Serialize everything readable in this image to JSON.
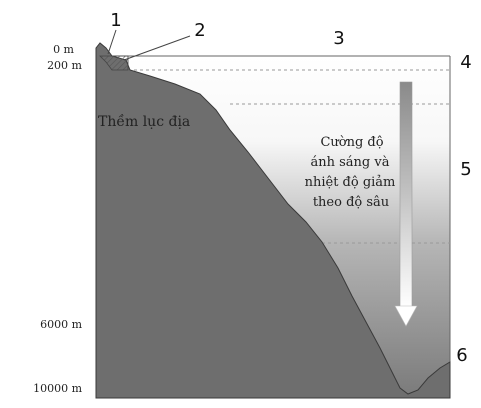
{
  "depth_labels": [
    "0 m",
    "200 m",
    "6000 m",
    "10000 m"
  ],
  "zone_numbers": [
    "1",
    "2",
    "3",
    "4",
    "5",
    "6"
  ],
  "shelf_label": "Thềm lục địa",
  "description_lines": [
    "Cường độ",
    "ánh sáng và",
    "nhiệt độ giảm",
    "theo độ sâu"
  ],
  "colors": {
    "land": "#6e6e6e",
    "land_edge": "#3a3a3a",
    "water_top": "#ffffff",
    "water_bottom": "#7a7a7a",
    "arrow_body": "#8c8c8c",
    "arrow_head": "#ffffff",
    "dashed_line": "#999999",
    "hatch": "#555555"
  }
}
